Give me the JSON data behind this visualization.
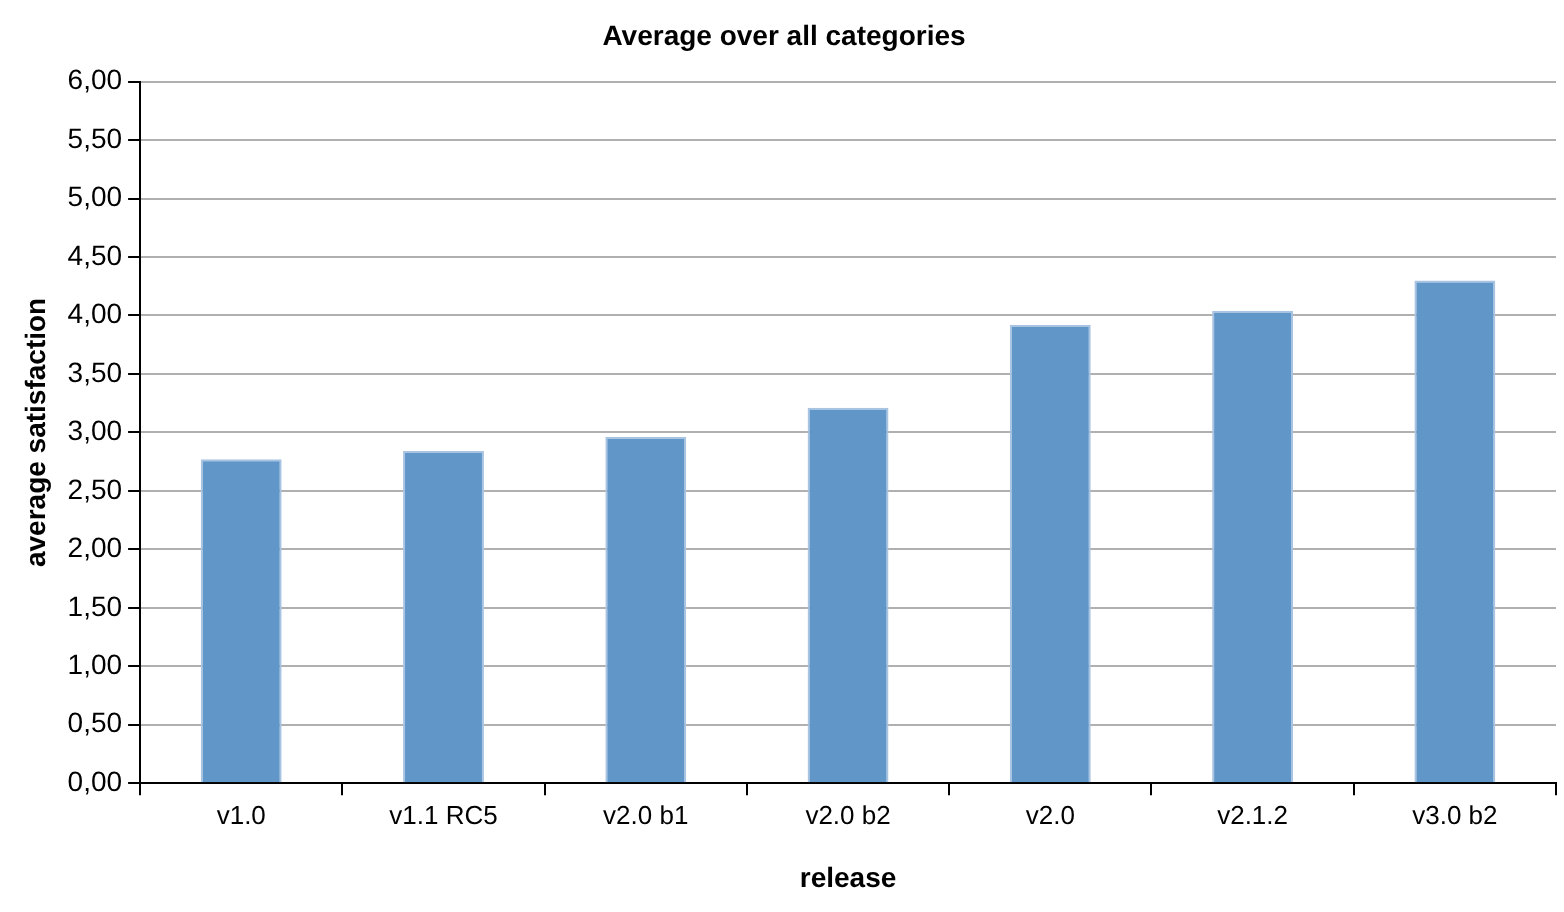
{
  "chart_data": {
    "type": "bar",
    "title": "Average over all categories",
    "xlabel": "release",
    "ylabel": "average satisfaction",
    "categories": [
      "v1.0",
      "v1.1 RC5",
      "v2.0 b1",
      "v2.0 b2",
      "v2.0",
      "v2.1.2",
      "v3.0 b2"
    ],
    "values": [
      2.77,
      2.84,
      2.96,
      3.21,
      3.92,
      4.04,
      4.3
    ],
    "color": "#6096c8",
    "ylim": [
      0,
      6
    ],
    "yticks": [
      {
        "value": 0,
        "label": "0,00"
      },
      {
        "value": 0.5,
        "label": "0,50"
      },
      {
        "value": 1,
        "label": "1,00"
      },
      {
        "value": 1.5,
        "label": "1,50"
      },
      {
        "value": 2,
        "label": "2,00"
      },
      {
        "value": 2.5,
        "label": "2,50"
      },
      {
        "value": 3,
        "label": "3,00"
      },
      {
        "value": 3.5,
        "label": "3,50"
      },
      {
        "value": 4,
        "label": "4,00"
      },
      {
        "value": 4.5,
        "label": "4,50"
      },
      {
        "value": 5,
        "label": "5,00"
      },
      {
        "value": 5.5,
        "label": "5,50"
      },
      {
        "value": 6,
        "label": "6,00"
      }
    ],
    "grid": "y"
  }
}
